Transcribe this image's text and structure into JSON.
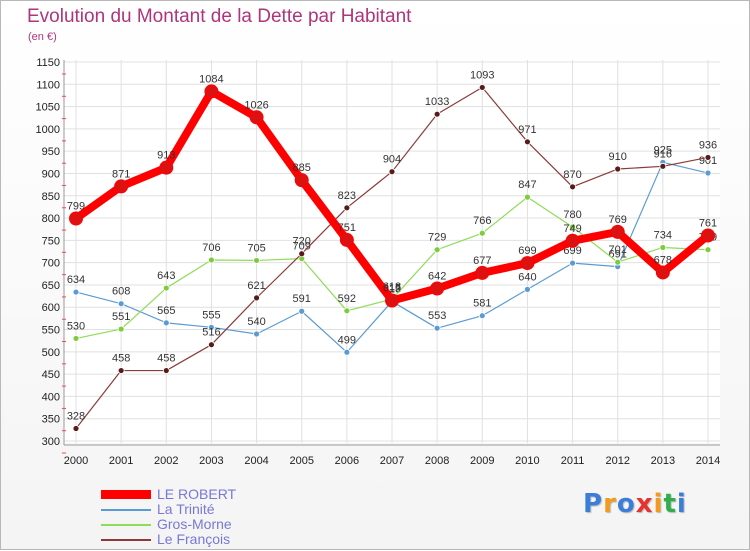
{
  "title": "Evolution du Montant de la Dette par Habitant",
  "subtitle": "(en €)",
  "logo": "Proxiti",
  "chart_data": {
    "type": "line",
    "title": "Evolution du Montant de la Dette par Habitant",
    "ylabel": "(en €)",
    "x": [
      "2000",
      "2001",
      "2002",
      "2003",
      "2004",
      "2005",
      "2006",
      "2007",
      "2008",
      "2009",
      "2010",
      "2011",
      "2012",
      "2013",
      "2014"
    ],
    "ylim": [
      300,
      1150
    ],
    "yticks": [
      "300",
      "350",
      "400",
      "450",
      "500",
      "550",
      "600",
      "650",
      "700",
      "750",
      "800",
      "850",
      "900",
      "950",
      "1000",
      "1050",
      "1100",
      "1150"
    ],
    "grid": true,
    "legend_position": "bottom-left",
    "series": [
      {
        "name": "LE ROBERT",
        "color": "#ff0000",
        "marker": "#dd1111",
        "emphasis": true,
        "values": [
          799,
          871,
          913,
          1084,
          1026,
          885,
          751,
          615,
          642,
          677,
          699,
          749,
          769,
          678,
          761
        ],
        "labels": [
          "799",
          "871",
          "913",
          "1084",
          "1026",
          "885",
          "751",
          "615",
          "642",
          "677",
          "699",
          "749",
          "769",
          "678",
          "761"
        ]
      },
      {
        "name": "La Trinité",
        "color": "#5b9bd5",
        "marker": "#5b9bd5",
        "values": [
          634,
          608,
          565,
          555,
          540,
          591,
          499,
          613,
          553,
          581,
          640,
          699,
          691,
          925,
          901
        ],
        "labels": [
          "634",
          "608",
          "565",
          "555",
          "540",
          "591",
          "499",
          "613",
          "553",
          "581",
          "640",
          "699",
          "691",
          "925",
          "901"
        ]
      },
      {
        "name": "Gros-Morne",
        "color": "#8fdc58",
        "marker": "#7ccc3c",
        "values": [
          530,
          551,
          643,
          706,
          705,
          709,
          592,
          618,
          729,
          766,
          847,
          780,
          701,
          734,
          729
        ],
        "labels": [
          "530",
          "551",
          "643",
          "706",
          "705",
          "709",
          "592",
          "618",
          "729",
          "766",
          "847",
          "780",
          "701",
          "734",
          "729"
        ]
      },
      {
        "name": "Le François",
        "color": "#8b3a3a",
        "marker": "#5a1a1a",
        "values": [
          328,
          458,
          458,
          516,
          621,
          720,
          823,
          904,
          1033,
          1093,
          971,
          870,
          910,
          916,
          936
        ],
        "labels": [
          "328",
          "458",
          "458",
          "516",
          "621",
          "720",
          "823",
          "904",
          "1033",
          "1093",
          "971",
          "870",
          "910",
          "916",
          "936"
        ]
      }
    ]
  }
}
